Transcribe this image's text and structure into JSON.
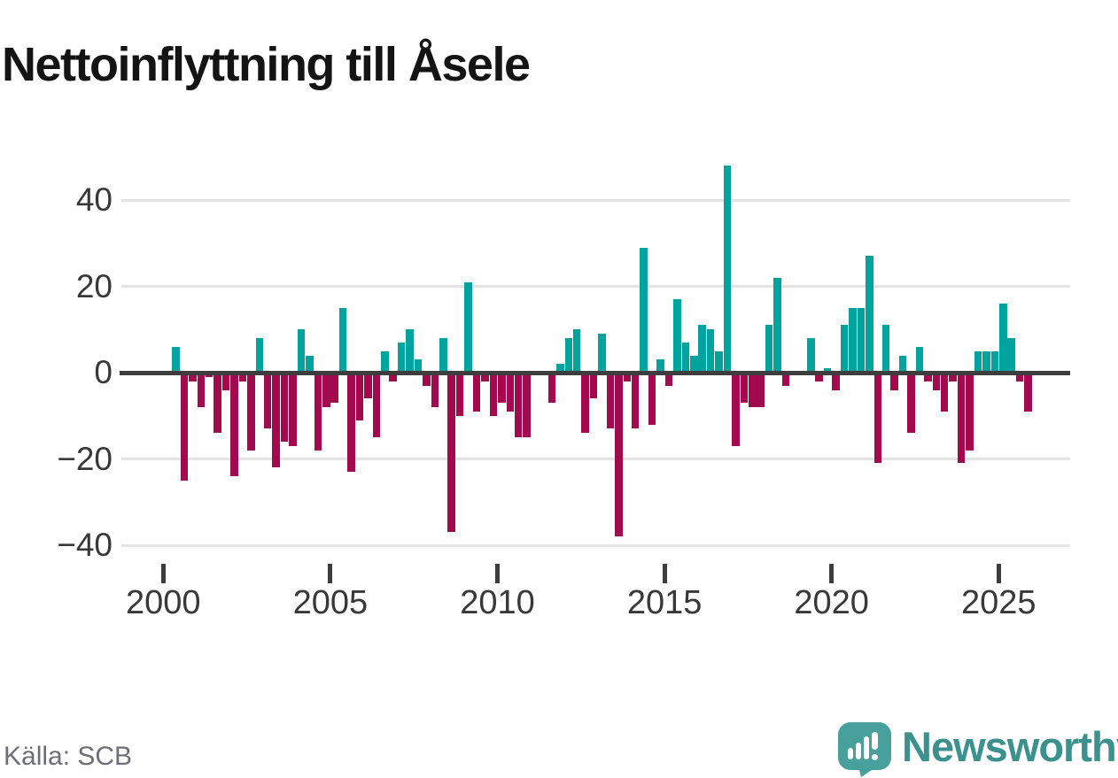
{
  "title": "Nettoinflyttning till Åsele",
  "source": "Källa: SCB",
  "brand": "Newsworthy",
  "colors": {
    "positive": "#00a39e",
    "negative": "#a30a4e",
    "axis": "#3d3d3d",
    "gridline": "#e4e4e4",
    "tick_text": "#383838",
    "logo_teal": "#3a918d",
    "logo_bubble": "#47a09b"
  },
  "chart_data": {
    "type": "bar",
    "title": "Nettoinflyttning till Åsele",
    "period": "quarterly",
    "x_tick_labels": [
      "2000",
      "2005",
      "2010",
      "2015",
      "2020",
      "2025"
    ],
    "y_ticks": [
      40,
      20,
      0,
      -20,
      -40
    ],
    "y_tick_labels": [
      "40",
      "20",
      "0",
      "−20",
      "−40"
    ],
    "ylim": [
      -45,
      52
    ],
    "grid": "horizontal",
    "legend": "none",
    "points": [
      [
        "2000Q1",
        0
      ],
      [
        "2000Q2",
        6
      ],
      [
        "2000Q3",
        -25
      ],
      [
        "2000Q4",
        -2
      ],
      [
        "2001Q1",
        -8
      ],
      [
        "2001Q2",
        -1
      ],
      [
        "2001Q3",
        -14
      ],
      [
        "2001Q4",
        -4
      ],
      [
        "2002Q1",
        -24
      ],
      [
        "2002Q2",
        -2
      ],
      [
        "2002Q3",
        -18
      ],
      [
        "2002Q4",
        8
      ],
      [
        "2003Q1",
        -13
      ],
      [
        "2003Q2",
        -22
      ],
      [
        "2003Q3",
        -16
      ],
      [
        "2003Q4",
        -17
      ],
      [
        "2004Q1",
        10
      ],
      [
        "2004Q2",
        4
      ],
      [
        "2004Q3",
        -18
      ],
      [
        "2004Q4",
        -8
      ],
      [
        "2005Q1",
        -7
      ],
      [
        "2005Q2",
        15
      ],
      [
        "2005Q3",
        -23
      ],
      [
        "2005Q4",
        -11
      ],
      [
        "2006Q1",
        -6
      ],
      [
        "2006Q2",
        -15
      ],
      [
        "2006Q3",
        5
      ],
      [
        "2006Q4",
        -2
      ],
      [
        "2007Q1",
        7
      ],
      [
        "2007Q2",
        10
      ],
      [
        "2007Q3",
        3
      ],
      [
        "2007Q4",
        -3
      ],
      [
        "2008Q1",
        -8
      ],
      [
        "2008Q2",
        8
      ],
      [
        "2008Q3",
        -37
      ],
      [
        "2008Q4",
        -10
      ],
      [
        "2009Q1",
        21
      ],
      [
        "2009Q2",
        -9
      ],
      [
        "2009Q3",
        -2
      ],
      [
        "2009Q4",
        -10
      ],
      [
        "2010Q1",
        -7
      ],
      [
        "2010Q2",
        -9
      ],
      [
        "2010Q3",
        -15
      ],
      [
        "2010Q4",
        -15
      ],
      [
        "2011Q1",
        0
      ],
      [
        "2011Q2",
        0
      ],
      [
        "2011Q3",
        -7
      ],
      [
        "2011Q4",
        2
      ],
      [
        "2012Q1",
        8
      ],
      [
        "2012Q2",
        10
      ],
      [
        "2012Q3",
        -14
      ],
      [
        "2012Q4",
        -6
      ],
      [
        "2013Q1",
        9
      ],
      [
        "2013Q2",
        -13
      ],
      [
        "2013Q3",
        -38
      ],
      [
        "2013Q4",
        -2
      ],
      [
        "2014Q1",
        -13
      ],
      [
        "2014Q2",
        29
      ],
      [
        "2014Q3",
        -12
      ],
      [
        "2014Q4",
        3
      ],
      [
        "2015Q1",
        -3
      ],
      [
        "2015Q2",
        17
      ],
      [
        "2015Q3",
        7
      ],
      [
        "2015Q4",
        4
      ],
      [
        "2016Q1",
        11
      ],
      [
        "2016Q2",
        10
      ],
      [
        "2016Q3",
        5
      ],
      [
        "2016Q4",
        48
      ],
      [
        "2017Q1",
        -17
      ],
      [
        "2017Q2",
        -7
      ],
      [
        "2017Q3",
        -8
      ],
      [
        "2017Q4",
        -8
      ],
      [
        "2018Q1",
        11
      ],
      [
        "2018Q2",
        22
      ],
      [
        "2018Q3",
        -3
      ],
      [
        "2018Q4",
        0
      ],
      [
        "2019Q1",
        0
      ],
      [
        "2019Q2",
        8
      ],
      [
        "2019Q3",
        -2
      ],
      [
        "2019Q4",
        1
      ],
      [
        "2020Q1",
        -4
      ],
      [
        "2020Q2",
        11
      ],
      [
        "2020Q3",
        15
      ],
      [
        "2020Q4",
        15
      ],
      [
        "2021Q1",
        27
      ],
      [
        "2021Q2",
        -21
      ],
      [
        "2021Q3",
        11
      ],
      [
        "2021Q4",
        -4
      ],
      [
        "2022Q1",
        4
      ],
      [
        "2022Q2",
        -14
      ],
      [
        "2022Q3",
        6
      ],
      [
        "2022Q4",
        -2
      ],
      [
        "2023Q1",
        -4
      ],
      [
        "2023Q2",
        -9
      ],
      [
        "2023Q3",
        -2
      ],
      [
        "2023Q4",
        -21
      ],
      [
        "2024Q1",
        -18
      ],
      [
        "2024Q2",
        5
      ],
      [
        "2024Q3",
        5
      ],
      [
        "2024Q4",
        5
      ],
      [
        "2025Q1",
        16
      ],
      [
        "2025Q2",
        8
      ],
      [
        "2025Q3",
        -2
      ],
      [
        "2025Q4",
        -9
      ]
    ]
  }
}
